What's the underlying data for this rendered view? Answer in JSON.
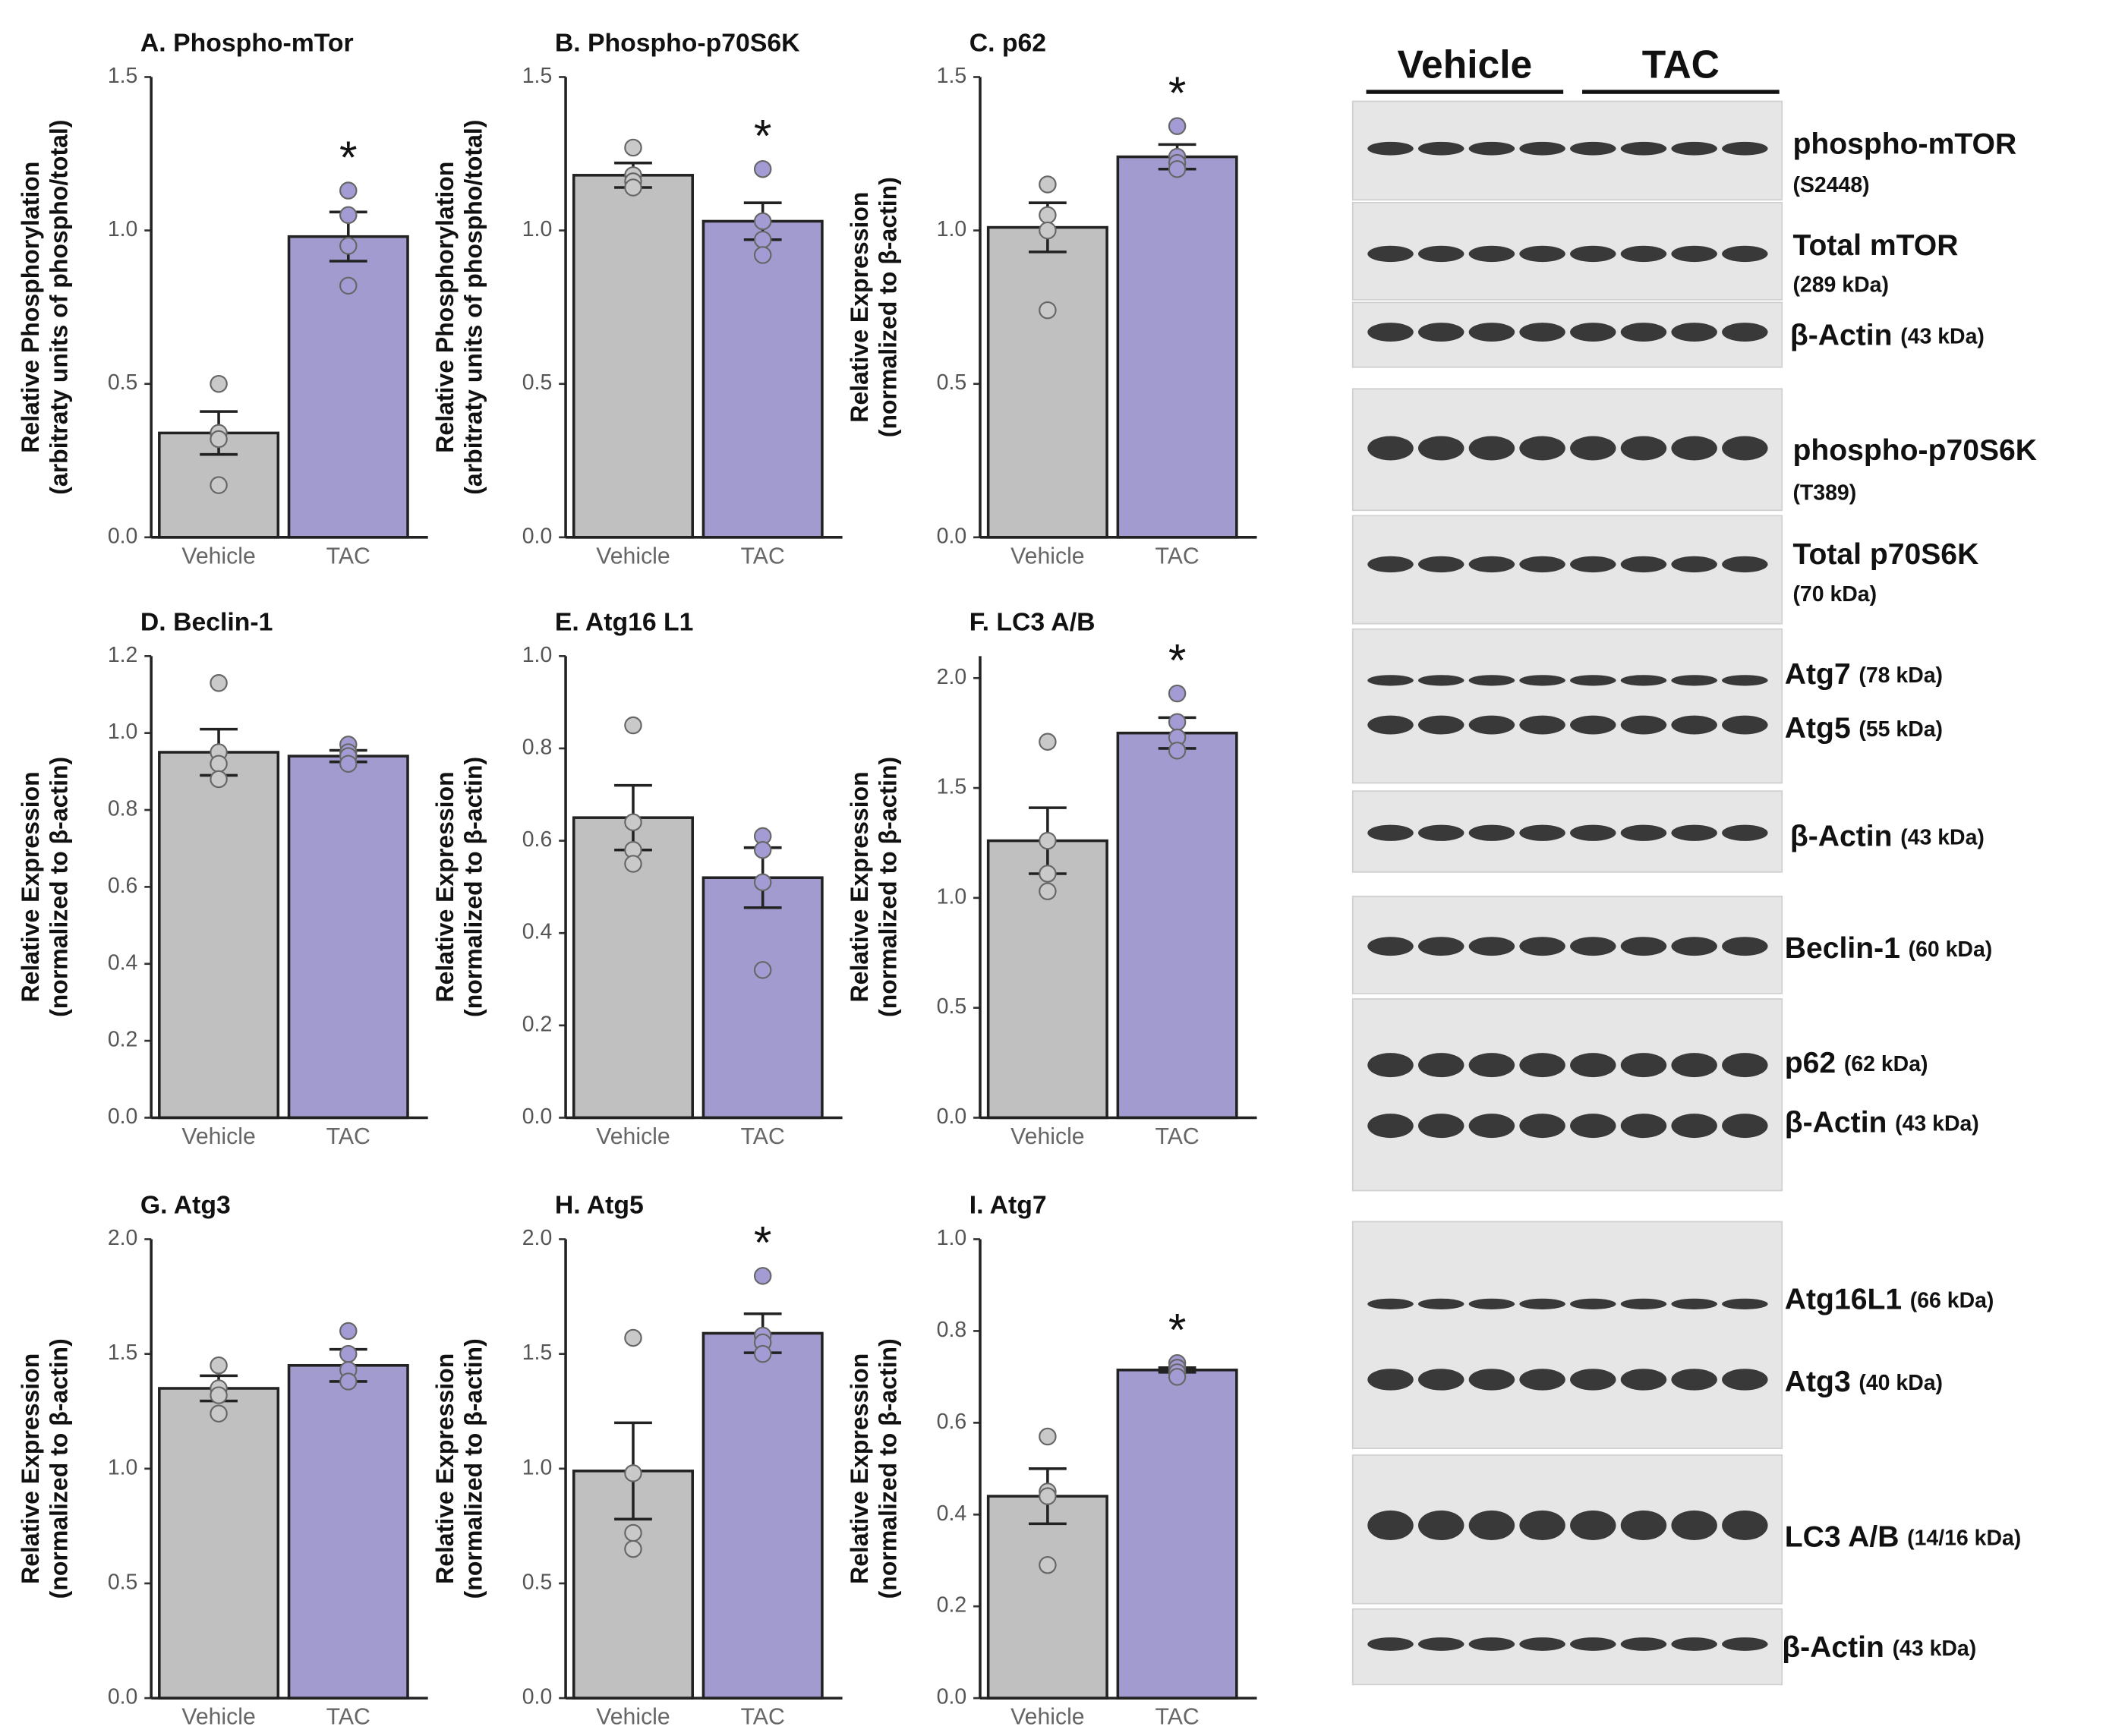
{
  "chart_data": [
    {
      "type": "bar",
      "title": "A. Phospho-mTor",
      "ylabel": [
        "Relative Phosphorylation",
        "(arbitraty units of phospho/total)"
      ],
      "categories": [
        "Vehicle",
        "TAC"
      ],
      "values": [
        0.34,
        0.98
      ],
      "errors": [
        0.07,
        0.08
      ],
      "points": [
        [
          0.5,
          0.34,
          0.32,
          0.17
        ],
        [
          1.13,
          1.05,
          0.95,
          0.82
        ]
      ],
      "annotation": "*",
      "colors": [
        "#c0c0c0",
        "#a29bcf"
      ],
      "ylim": [
        0,
        1.5
      ],
      "yticks": [
        {
          "value": 0,
          "label": "0.0"
        },
        0.5,
        {
          "value": 1,
          "label": "1.0"
        },
        1.5
      ]
    },
    {
      "type": "bar",
      "title": "B. Phospho-p70S6K",
      "ylabel": [
        "Relative Phosphorylation",
        "(arbitraty units of phospho/total)"
      ],
      "categories": [
        "Vehicle",
        "TAC"
      ],
      "values": [
        1.18,
        1.03
      ],
      "errors": [
        0.04,
        0.06
      ],
      "points": [
        [
          1.27,
          1.18,
          1.16,
          1.14
        ],
        [
          1.2,
          1.03,
          0.97,
          0.92
        ]
      ],
      "annotation": "*",
      "colors": [
        "#c0c0c0",
        "#a29bcf"
      ],
      "ylim": [
        0,
        1.5
      ],
      "yticks": [
        {
          "value": 0,
          "label": "0.0"
        },
        0.5,
        {
          "value": 1,
          "label": "1.0"
        },
        1.5
      ]
    },
    {
      "type": "bar",
      "title": "C. p62",
      "ylabel": [
        "Relative Expression",
        "(normalized to  β-actin)"
      ],
      "categories": [
        "Vehicle",
        "TAC"
      ],
      "values": [
        1.01,
        1.24
      ],
      "errors": [
        0.08,
        0.04
      ],
      "points": [
        [
          1.15,
          1.05,
          1.0,
          0.74
        ],
        [
          1.34,
          1.24,
          1.22,
          1.2
        ]
      ],
      "annotation": "*",
      "colors": [
        "#c0c0c0",
        "#a29bcf"
      ],
      "ylim": [
        0,
        1.5
      ],
      "yticks": [
        {
          "value": 0,
          "label": "0.0"
        },
        0.5,
        {
          "value": 1,
          "label": "1.0"
        },
        1.5
      ]
    },
    {
      "type": "bar",
      "title": "D. Beclin-1",
      "ylabel": [
        "Relative Expression",
        "(normalized to  β-actin)"
      ],
      "categories": [
        "Vehicle",
        "TAC"
      ],
      "values": [
        0.95,
        0.94
      ],
      "errors": [
        0.06,
        0.015
      ],
      "points": [
        [
          1.13,
          0.95,
          0.92,
          0.88
        ],
        [
          0.97,
          0.95,
          0.94,
          0.92
        ]
      ],
      "colors": [
        "#c0c0c0",
        "#a29bcf"
      ],
      "ylim": [
        0,
        1.2
      ],
      "yticks": [
        {
          "value": 0,
          "label": "0.0"
        },
        0.2,
        0.4,
        0.6,
        0.8,
        {
          "value": 1,
          "label": "1.0"
        },
        1.2
      ]
    },
    {
      "type": "bar",
      "title": "E. Atg16 L1",
      "ylabel": [
        "Relative Expression",
        "(normalized to  β-actin)"
      ],
      "categories": [
        "Vehicle",
        "TAC"
      ],
      "values": [
        0.65,
        0.52
      ],
      "errors": [
        0.07,
        0.065
      ],
      "points": [
        [
          0.85,
          0.64,
          0.58,
          0.55
        ],
        [
          0.61,
          0.58,
          0.51,
          0.32
        ]
      ],
      "colors": [
        "#c0c0c0",
        "#a29bcf"
      ],
      "ylim": [
        0,
        1
      ],
      "yticks": [
        {
          "value": 0,
          "label": "0.0"
        },
        0.2,
        0.4,
        0.6,
        0.8,
        {
          "value": 1,
          "label": "1.0"
        }
      ]
    },
    {
      "type": "bar",
      "title": "F. LC3 A/B",
      "ylabel": [
        "Relative Expression",
        "(normalized to  β-actin)"
      ],
      "categories": [
        "Vehicle",
        "TAC"
      ],
      "values": [
        1.26,
        1.75
      ],
      "errors": [
        0.15,
        0.07
      ],
      "points": [
        [
          1.71,
          1.26,
          1.11,
          1.03
        ],
        [
          1.93,
          1.8,
          1.73,
          1.67
        ]
      ],
      "annotation": "*",
      "colors": [
        "#c0c0c0",
        "#a29bcf"
      ],
      "ylim": [
        0,
        2.1
      ],
      "yticks": [
        {
          "value": 0,
          "label": "0.0"
        },
        0.5,
        {
          "value": 1,
          "label": "1.0"
        },
        1.5,
        {
          "value": 2,
          "label": "2.0"
        }
      ]
    },
    {
      "type": "bar",
      "title": "G. Atg3",
      "ylabel": [
        "Relative Expression",
        "(normalized to  β-actin)"
      ],
      "categories": [
        "Vehicle",
        "TAC"
      ],
      "values": [
        1.35,
        1.45
      ],
      "errors": [
        0.055,
        0.07
      ],
      "points": [
        [
          1.45,
          1.35,
          1.32,
          1.24
        ],
        [
          1.6,
          1.5,
          1.43,
          1.38
        ]
      ],
      "colors": [
        "#c0c0c0",
        "#a29bcf"
      ],
      "ylim": [
        0,
        2
      ],
      "yticks": [
        {
          "value": 0,
          "label": "0.0"
        },
        0.5,
        {
          "value": 1,
          "label": "1.0"
        },
        1.5,
        {
          "value": 2,
          "label": "2.0"
        }
      ]
    },
    {
      "type": "bar",
      "title": "H. Atg5",
      "ylabel": [
        "Relative Expression",
        "(normalized to  β-actin)"
      ],
      "categories": [
        "Vehicle",
        "TAC"
      ],
      "values": [
        0.99,
        1.59
      ],
      "errors": [
        0.21,
        0.085
      ],
      "points": [
        [
          1.57,
          0.98,
          0.72,
          0.65
        ],
        [
          1.84,
          1.58,
          1.55,
          1.5
        ]
      ],
      "annotation": "*",
      "colors": [
        "#c0c0c0",
        "#a29bcf"
      ],
      "ylim": [
        0,
        2
      ],
      "yticks": [
        {
          "value": 0,
          "label": "0.0"
        },
        0.5,
        {
          "value": 1,
          "label": "1.0"
        },
        1.5,
        {
          "value": 2,
          "label": "2.0"
        }
      ]
    },
    {
      "type": "bar",
      "title": "I. Atg7",
      "ylabel": [
        "Relative Expression",
        "(normalized to  β-actin)"
      ],
      "categories": [
        "Vehicle",
        "TAC"
      ],
      "values": [
        0.44,
        0.715
      ],
      "errors": [
        0.06,
        0.005
      ],
      "points": [
        [
          0.57,
          0.45,
          0.44,
          0.29
        ],
        [
          0.73,
          0.72,
          0.71,
          0.7
        ]
      ],
      "annotation": "*",
      "colors": [
        "#c0c0c0",
        "#a29bcf"
      ],
      "ylim": [
        0,
        1
      ],
      "yticks": [
        {
          "value": 0,
          "label": "0.0"
        },
        0.2,
        0.4,
        0.6,
        0.8,
        {
          "value": 1,
          "label": "1.0"
        }
      ]
    }
  ],
  "blot": {
    "groups": [
      "Vehicle",
      "TAC"
    ],
    "labels": [
      {
        "name": "phospho-mTOR",
        "size": "(S2448)"
      },
      {
        "name": "Total mTOR",
        "size": "(289 kDa)"
      },
      {
        "name": "β-Actin",
        "size": "(43 kDa)"
      },
      {
        "name": "phospho-p70S6K",
        "size": "(T389)"
      },
      {
        "name": "Total p70S6K",
        "size": "(70 kDa)"
      },
      {
        "name": "Atg7",
        "size": "(78 kDa)"
      },
      {
        "name": "Atg5",
        "size": "(55 kDa)"
      },
      {
        "name": "β-Actin",
        "size": "(43 kDa)"
      },
      {
        "name": "Beclin-1",
        "size": "(60 kDa)"
      },
      {
        "name": "p62",
        "size": "(62 kDa)"
      },
      {
        "name": "β-Actin",
        "size": "(43 kDa)"
      },
      {
        "name": "Atg16L1",
        "size": "(66 kDa)"
      },
      {
        "name": "Atg3",
        "size": "(40 kDa)"
      },
      {
        "name": "LC3 A/B",
        "size": "(14/16 kDa)"
      },
      {
        "name": "β-Actin",
        "size": "(43 kDa)"
      }
    ]
  }
}
